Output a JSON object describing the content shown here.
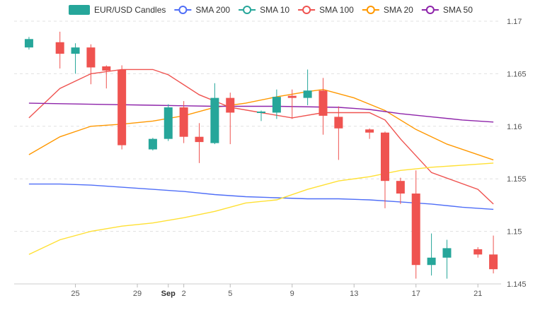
{
  "chart_data": {
    "type": "candlestick",
    "legend": {
      "placement": "top-center",
      "items": [
        {
          "label": "EUR/USD Candles",
          "color": "#26a69a",
          "kind": "box"
        },
        {
          "label": "SMA 200",
          "color": "#4f6ef7",
          "kind": "line"
        },
        {
          "label": "SMA 10",
          "color": "#26a69a",
          "kind": "line"
        },
        {
          "label": "SMA 100",
          "color": "#ef5350",
          "kind": "line"
        },
        {
          "label": "SMA 20",
          "color": "#ff9800",
          "kind": "line"
        },
        {
          "label": "SMA 50",
          "color": "#8e24aa",
          "kind": "line"
        }
      ]
    },
    "y_axis": {
      "position": "right",
      "range": [
        1.145,
        1.17
      ],
      "ticks": [
        "1.17",
        "1.165",
        "1.16",
        "1.155",
        "1.15",
        "1.145"
      ],
      "grid": true
    },
    "x_axis": {
      "ticks": [
        {
          "day": 25,
          "label": "25"
        },
        {
          "day": 29,
          "label": "29"
        },
        {
          "day": 31,
          "label": "Sep",
          "bold": true
        },
        {
          "day": 32,
          "label": "2"
        },
        {
          "day": 35,
          "label": "5"
        },
        {
          "day": 39,
          "label": "9"
        },
        {
          "day": 43,
          "label": "13"
        },
        {
          "day": 47,
          "label": "17"
        },
        {
          "day": 51,
          "label": "21"
        }
      ]
    },
    "candles": [
      {
        "date": "Aug 22",
        "day": 22,
        "open": 1.1675,
        "high": 1.1685,
        "low": 1.1673,
        "close": 1.1683
      },
      {
        "date": "Aug 24",
        "day": 24,
        "open": 1.168,
        "high": 1.169,
        "low": 1.1655,
        "close": 1.1669
      },
      {
        "date": "Aug 25",
        "day": 25,
        "open": 1.1669,
        "high": 1.1679,
        "low": 1.165,
        "close": 1.1675
      },
      {
        "date": "Aug 26",
        "day": 26,
        "open": 1.1675,
        "high": 1.1678,
        "low": 1.164,
        "close": 1.1656
      },
      {
        "date": "Aug 27",
        "day": 27,
        "open": 1.1657,
        "high": 1.1658,
        "low": 1.1636,
        "close": 1.1653
      },
      {
        "date": "Aug 28",
        "day": 28,
        "open": 1.1654,
        "high": 1.1658,
        "low": 1.1578,
        "close": 1.1582
      },
      {
        "date": "Aug 30",
        "day": 30,
        "open": 1.1578,
        "high": 1.1589,
        "low": 1.1577,
        "close": 1.1588
      },
      {
        "date": "Aug 31",
        "day": 31,
        "open": 1.1588,
        "high": 1.1621,
        "low": 1.1586,
        "close": 1.1618
      },
      {
        "date": "Sep 1",
        "day": 32,
        "open": 1.1618,
        "high": 1.1624,
        "low": 1.1584,
        "close": 1.159
      },
      {
        "date": "Sep 2",
        "day": 33,
        "open": 1.159,
        "high": 1.1603,
        "low": 1.1565,
        "close": 1.1585
      },
      {
        "date": "Sep 3",
        "day": 34,
        "open": 1.1584,
        "high": 1.1641,
        "low": 1.1583,
        "close": 1.1627
      },
      {
        "date": "Sep 4",
        "day": 35,
        "open": 1.1627,
        "high": 1.1632,
        "low": 1.1583,
        "close": 1.1613
      },
      {
        "date": "Sep 6",
        "day": 37,
        "open": 1.1613,
        "high": 1.1615,
        "low": 1.1605,
        "close": 1.1614
      },
      {
        "date": "Sep 7",
        "day": 38,
        "open": 1.1613,
        "high": 1.1635,
        "low": 1.1607,
        "close": 1.1628
      },
      {
        "date": "Sep 8",
        "day": 39,
        "open": 1.1629,
        "high": 1.1635,
        "low": 1.1607,
        "close": 1.1627
      },
      {
        "date": "Sep 9",
        "day": 40,
        "open": 1.1627,
        "high": 1.1654,
        "low": 1.162,
        "close": 1.1634
      },
      {
        "date": "Sep 10",
        "day": 41,
        "open": 1.1634,
        "high": 1.1646,
        "low": 1.1592,
        "close": 1.161
      },
      {
        "date": "Sep 11",
        "day": 42,
        "open": 1.1609,
        "high": 1.1619,
        "low": 1.1568,
        "close": 1.1598
      },
      {
        "date": "Sep 13",
        "day": 44,
        "open": 1.1597,
        "high": 1.1598,
        "low": 1.1588,
        "close": 1.1594
      },
      {
        "date": "Sep 14",
        "day": 45,
        "open": 1.1594,
        "high": 1.1595,
        "low": 1.1522,
        "close": 1.1548
      },
      {
        "date": "Sep 15",
        "day": 46,
        "open": 1.1548,
        "high": 1.1551,
        "low": 1.1526,
        "close": 1.1536
      },
      {
        "date": "Sep 16",
        "day": 47,
        "open": 1.1536,
        "high": 1.1558,
        "low": 1.1455,
        "close": 1.1468
      },
      {
        "date": "Sep 17",
        "day": 48,
        "open": 1.1468,
        "high": 1.1498,
        "low": 1.1458,
        "close": 1.1475
      },
      {
        "date": "Sep 18",
        "day": 49,
        "open": 1.1475,
        "high": 1.1492,
        "low": 1.1455,
        "close": 1.1484
      },
      {
        "date": "Sep 20",
        "day": 51,
        "open": 1.1483,
        "high": 1.1485,
        "low": 1.1475,
        "close": 1.1478
      },
      {
        "date": "Sep 21",
        "day": 52,
        "open": 1.1478,
        "high": 1.1496,
        "low": 1.146,
        "close": 1.1464
      }
    ],
    "series": [
      {
        "name": "SMA 200",
        "color": "#4f6ef7",
        "points": [
          [
            22,
            1.1545
          ],
          [
            24,
            1.1545
          ],
          [
            26,
            1.1544
          ],
          [
            28,
            1.1542
          ],
          [
            30,
            1.154
          ],
          [
            32,
            1.1538
          ],
          [
            34,
            1.1535
          ],
          [
            36,
            1.1533
          ],
          [
            38,
            1.1532
          ],
          [
            40,
            1.1531
          ],
          [
            42,
            1.1531
          ],
          [
            44,
            1.153
          ],
          [
            46,
            1.1528
          ],
          [
            48,
            1.1526
          ],
          [
            50,
            1.1523
          ],
          [
            52,
            1.1521
          ]
        ]
      },
      {
        "name": "SMA 100",
        "color": "#ef5350",
        "points": [
          [
            22,
            1.1608
          ],
          [
            24,
            1.1636
          ],
          [
            26,
            1.165
          ],
          [
            28,
            1.1654
          ],
          [
            30,
            1.1654
          ],
          [
            31,
            1.1649
          ],
          [
            33,
            1.163
          ],
          [
            35,
            1.1618
          ],
          [
            37,
            1.1613
          ],
          [
            39,
            1.1608
          ],
          [
            41,
            1.1613
          ],
          [
            43,
            1.1613
          ],
          [
            44,
            1.1613
          ],
          [
            45,
            1.1606
          ],
          [
            46,
            1.1588
          ],
          [
            48,
            1.1556
          ],
          [
            51,
            1.154
          ],
          [
            52,
            1.1526
          ]
        ]
      },
      {
        "name": "SMA 20",
        "color": "#ff9800",
        "points": [
          [
            22,
            1.1573
          ],
          [
            24,
            1.159
          ],
          [
            26,
            1.16
          ],
          [
            28,
            1.1602
          ],
          [
            30,
            1.1605
          ],
          [
            32,
            1.161
          ],
          [
            34,
            1.1618
          ],
          [
            36,
            1.1622
          ],
          [
            38,
            1.1628
          ],
          [
            40,
            1.1633
          ],
          [
            41,
            1.1635
          ],
          [
            43,
            1.1627
          ],
          [
            45,
            1.1615
          ],
          [
            47,
            1.1597
          ],
          [
            49,
            1.1583
          ],
          [
            52,
            1.1568
          ]
        ]
      },
      {
        "name": "SMA 50",
        "color": "#8e24aa",
        "points": [
          [
            22,
            1.1622
          ],
          [
            26,
            1.1621
          ],
          [
            30,
            1.162
          ],
          [
            34,
            1.1619
          ],
          [
            38,
            1.1619
          ],
          [
            42,
            1.1618
          ],
          [
            44,
            1.1616
          ],
          [
            46,
            1.1612
          ],
          [
            48,
            1.1609
          ],
          [
            50,
            1.1606
          ],
          [
            52,
            1.1604
          ]
        ]
      },
      {
        "name": "SMA 50 (yellow)",
        "color": "#ffe033",
        "points": [
          [
            22,
            1.1478
          ],
          [
            24,
            1.1492
          ],
          [
            26,
            1.15
          ],
          [
            28,
            1.1505
          ],
          [
            30,
            1.1508
          ],
          [
            32,
            1.1513
          ],
          [
            34,
            1.1519
          ],
          [
            36,
            1.1527
          ],
          [
            38,
            1.153
          ],
          [
            40,
            1.154
          ],
          [
            42,
            1.1548
          ],
          [
            44,
            1.1552
          ],
          [
            46,
            1.1558
          ],
          [
            48,
            1.1561
          ],
          [
            50,
            1.1563
          ],
          [
            52,
            1.1565
          ]
        ]
      }
    ]
  }
}
